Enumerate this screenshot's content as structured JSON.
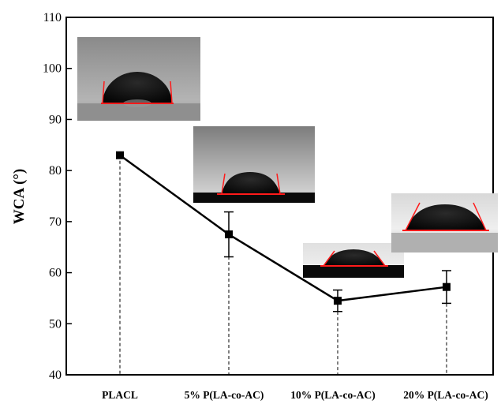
{
  "chart_data": {
    "type": "line",
    "title": "",
    "xlabel": "",
    "ylabel": "WCA (°)",
    "categories": [
      "PLACL",
      "5% P(LA-co-AC)",
      "10% P(LA-co-AC)",
      "20% P(LA-co-AC)"
    ],
    "series": [
      {
        "values": [
          83.0,
          67.5,
          54.5,
          57.2
        ],
        "error": [
          0,
          4.4,
          2.1,
          3.2
        ]
      }
    ],
    "ylim": [
      40,
      110
    ],
    "yticks": [
      40,
      50,
      60,
      70,
      80,
      90,
      100,
      110
    ],
    "grid": false,
    "marker": "square",
    "line_color": "#000000",
    "contact_line_color": "#ff1a1a",
    "insets": [
      "water-droplet-photo-placl",
      "water-droplet-photo-5pct",
      "water-droplet-photo-10pct",
      "water-droplet-photo-20pct"
    ]
  }
}
